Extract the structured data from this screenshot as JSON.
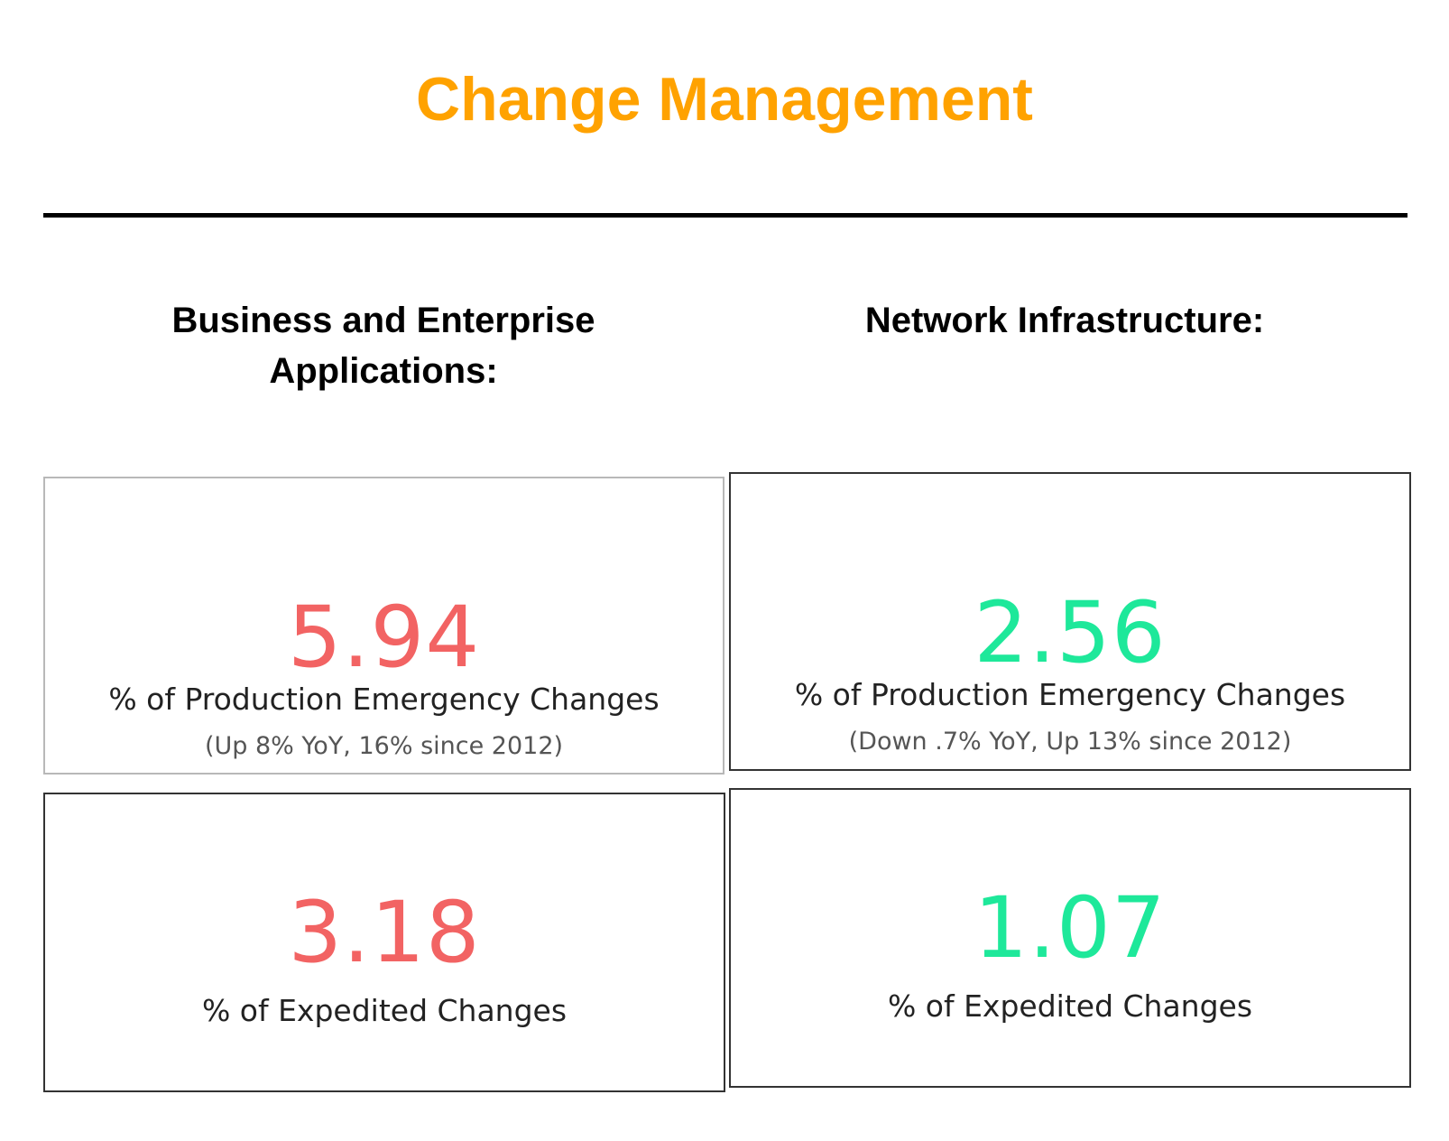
{
  "header": {
    "title": "Change Management",
    "title_color": "#ffa200"
  },
  "sections": {
    "business": {
      "heading_line1": "Business and Enterprise",
      "heading_line2": "Applications:"
    },
    "network": {
      "heading": "Network Infrastructure:"
    }
  },
  "colors": {
    "negative": "#f26363",
    "positive": "#1ee89a"
  },
  "cards": {
    "bea_prod": {
      "value": "5.94",
      "label": "% of Production Emergency Changes",
      "note": "(Up 8% YoY, 16% since 2012)"
    },
    "net_prod": {
      "value": "2.56",
      "label": "% of Production Emergency Changes",
      "note": "(Down .7% YoY, Up 13% since 2012)"
    },
    "bea_exp": {
      "value": "3.18",
      "label": "% of Expedited Changes"
    },
    "net_exp": {
      "value": "1.07",
      "label": "% of Expedited Changes"
    }
  }
}
